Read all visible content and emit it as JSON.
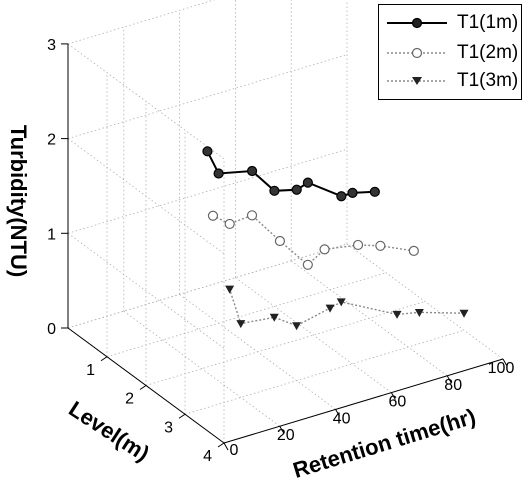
{
  "chart_data": {
    "type": "line",
    "projection": "3d",
    "zlabel": "Turbidity(NTU)",
    "ylabel": "Level(m)",
    "xlabel": "Retention time(hr)",
    "zlim": [
      0,
      3
    ],
    "ylim": [
      0,
      4
    ],
    "xlim": [
      0,
      100
    ],
    "z_ticks": [
      "0",
      "1",
      "2",
      "3"
    ],
    "y_ticks": [
      "1",
      "2",
      "3",
      "4"
    ],
    "x_ticks": [
      "0",
      "20",
      "40",
      "60",
      "80",
      "100"
    ],
    "grid": true,
    "legend_position": "top-right",
    "series": [
      {
        "name": "T1(1m)",
        "level": 1,
        "color": "#000000",
        "marker": "filled-circle",
        "line": "solid",
        "points": [
          {
            "t": 96,
            "v": 0.89
          },
          {
            "t": 88,
            "v": 0.95
          },
          {
            "t": 84,
            "v": 0.95
          },
          {
            "t": 72,
            "v": 1.2
          },
          {
            "t": 68,
            "v": 1.16
          },
          {
            "t": 60,
            "v": 1.22
          },
          {
            "t": 52,
            "v": 1.5
          },
          {
            "t": 40,
            "v": 1.58
          },
          {
            "t": 36,
            "v": 1.85
          }
        ]
      },
      {
        "name": "T1(2m)",
        "level": 2,
        "color": "#808080",
        "marker": "open-circle",
        "line": "dotted",
        "points": [
          {
            "t": 96,
            "v": 0.57
          },
          {
            "t": 84,
            "v": 0.73
          },
          {
            "t": 76,
            "v": 0.81
          },
          {
            "t": 64,
            "v": 0.87
          },
          {
            "t": 58,
            "v": 0.76
          },
          {
            "t": 48,
            "v": 1.1
          },
          {
            "t": 38,
            "v": 1.46
          },
          {
            "t": 30,
            "v": 1.44
          },
          {
            "t": 24,
            "v": 1.58
          }
        ]
      },
      {
        "name": "T1(3m)",
        "level": 3,
        "color": "#808080",
        "marker": "filled-triangle-down",
        "line": "dotted",
        "points": [
          {
            "t": 100,
            "v": 0.18
          },
          {
            "t": 84,
            "v": 0.33
          },
          {
            "t": 76,
            "v": 0.38
          },
          {
            "t": 56,
            "v": 0.69
          },
          {
            "t": 52,
            "v": 0.66
          },
          {
            "t": 40,
            "v": 0.58
          },
          {
            "t": 32,
            "v": 0.74
          },
          {
            "t": 20,
            "v": 0.78
          },
          {
            "t": 16,
            "v": 1.18
          }
        ]
      }
    ]
  }
}
